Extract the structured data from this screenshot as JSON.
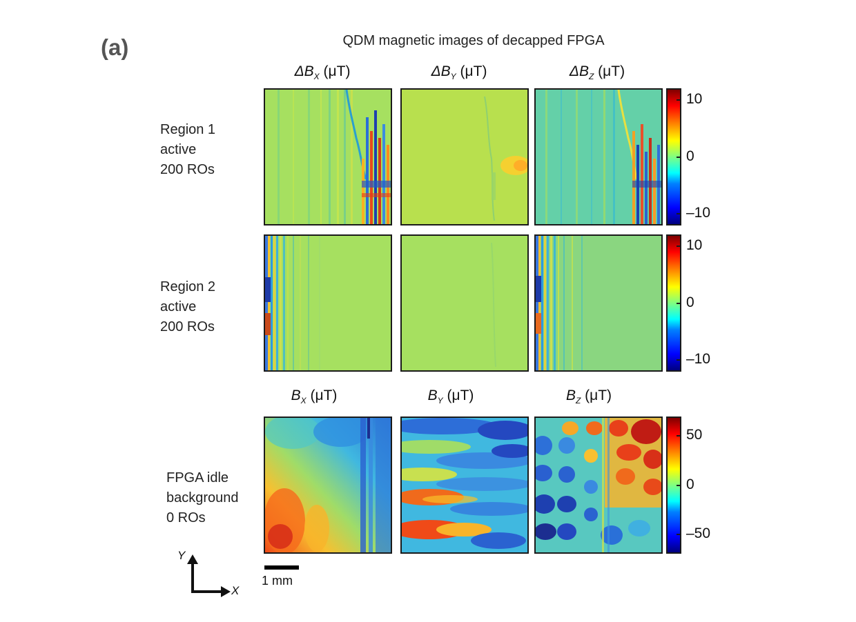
{
  "panel_label": "(a)",
  "figure_title": "QDM magnetic images of decapped FPGA",
  "difference_headers": [
    {
      "prefix": "ΔB",
      "sub": "X",
      "unit": " (μT)"
    },
    {
      "prefix": "ΔB",
      "sub": "Y",
      "unit": " (μT)"
    },
    {
      "prefix": "ΔB",
      "sub": "Z",
      "unit": " (μT)"
    }
  ],
  "background_headers": [
    {
      "prefix": "B",
      "sub": "X",
      "unit": " (μT)"
    },
    {
      "prefix": "B",
      "sub": "Y",
      "unit": " (μT)"
    },
    {
      "prefix": "B",
      "sub": "Z",
      "unit": " (μT)"
    }
  ],
  "rows": [
    {
      "lines": [
        "Region 1",
        "active",
        "200 ROs"
      ]
    },
    {
      "lines": [
        "Region 2",
        "active",
        "200 ROs"
      ]
    },
    {
      "lines": [
        "FPGA idle",
        "background",
        "0 ROs"
      ]
    }
  ],
  "colorbars": [
    {
      "ticks": [
        "10",
        "0",
        "–10"
      ],
      "range": [
        -12,
        12
      ],
      "tick_values": [
        10,
        0,
        -10
      ]
    },
    {
      "ticks": [
        "10",
        "0",
        "–10"
      ],
      "range": [
        -12,
        12
      ],
      "tick_values": [
        10,
        0,
        -10
      ]
    },
    {
      "ticks": [
        "50",
        "0",
        "–50"
      ],
      "range": [
        -70,
        70
      ],
      "tick_values": [
        50,
        0,
        -50
      ]
    }
  ],
  "colormap": "jet",
  "scale_bar_label": "1 mm",
  "axes": {
    "y": "Y",
    "x": "X"
  }
}
